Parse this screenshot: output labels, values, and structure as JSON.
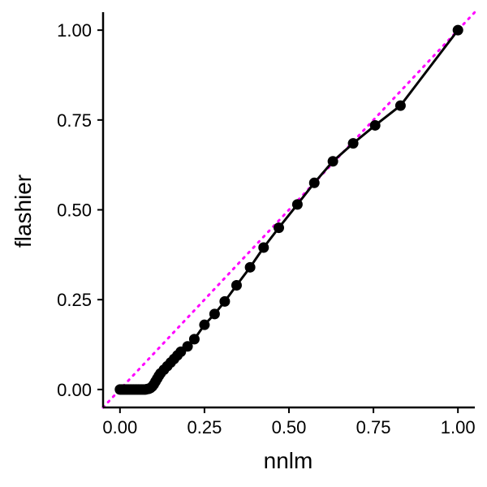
{
  "chart_data": {
    "type": "scatter",
    "xlabel": "nnlm",
    "ylabel": "flashier",
    "xlim": [
      -0.05,
      1.05
    ],
    "ylim": [
      -0.05,
      1.05
    ],
    "x_ticks": [
      "0.00",
      "0.25",
      "0.50",
      "0.75",
      "1.00"
    ],
    "y_ticks": [
      "0.00",
      "0.25",
      "0.50",
      "0.75",
      "1.00"
    ],
    "grid": false,
    "reference_line": {
      "type": "identity",
      "style": "dotted",
      "color": "#ff00ff"
    },
    "series": [
      {
        "color": "#000000",
        "line": true,
        "points": [
          [
            0.0,
            0.0
          ],
          [
            0.005,
            0.0
          ],
          [
            0.01,
            0.0
          ],
          [
            0.015,
            0.0
          ],
          [
            0.02,
            0.0
          ],
          [
            0.025,
            0.0
          ],
          [
            0.03,
            0.0
          ],
          [
            0.035,
            0.0
          ],
          [
            0.04,
            0.0
          ],
          [
            0.045,
            0.0
          ],
          [
            0.05,
            0.0
          ],
          [
            0.055,
            0.0
          ],
          [
            0.06,
            0.0
          ],
          [
            0.065,
            0.0
          ],
          [
            0.07,
            0.0
          ],
          [
            0.075,
            0.0
          ],
          [
            0.08,
            0.001
          ],
          [
            0.085,
            0.002
          ],
          [
            0.09,
            0.004
          ],
          [
            0.095,
            0.008
          ],
          [
            0.1,
            0.014
          ],
          [
            0.105,
            0.022
          ],
          [
            0.11,
            0.03
          ],
          [
            0.115,
            0.038
          ],
          [
            0.12,
            0.045
          ],
          [
            0.13,
            0.055
          ],
          [
            0.14,
            0.065
          ],
          [
            0.15,
            0.075
          ],
          [
            0.16,
            0.085
          ],
          [
            0.17,
            0.095
          ],
          [
            0.18,
            0.105
          ],
          [
            0.2,
            0.12
          ],
          [
            0.22,
            0.14
          ],
          [
            0.25,
            0.18
          ],
          [
            0.28,
            0.21
          ],
          [
            0.31,
            0.245
          ],
          [
            0.345,
            0.29
          ],
          [
            0.385,
            0.34
          ],
          [
            0.425,
            0.395
          ],
          [
            0.47,
            0.45
          ],
          [
            0.525,
            0.515
          ],
          [
            0.575,
            0.575
          ],
          [
            0.63,
            0.635
          ],
          [
            0.69,
            0.685
          ],
          [
            0.755,
            0.735
          ],
          [
            0.83,
            0.79
          ],
          [
            1.0,
            1.0
          ]
        ]
      }
    ]
  }
}
